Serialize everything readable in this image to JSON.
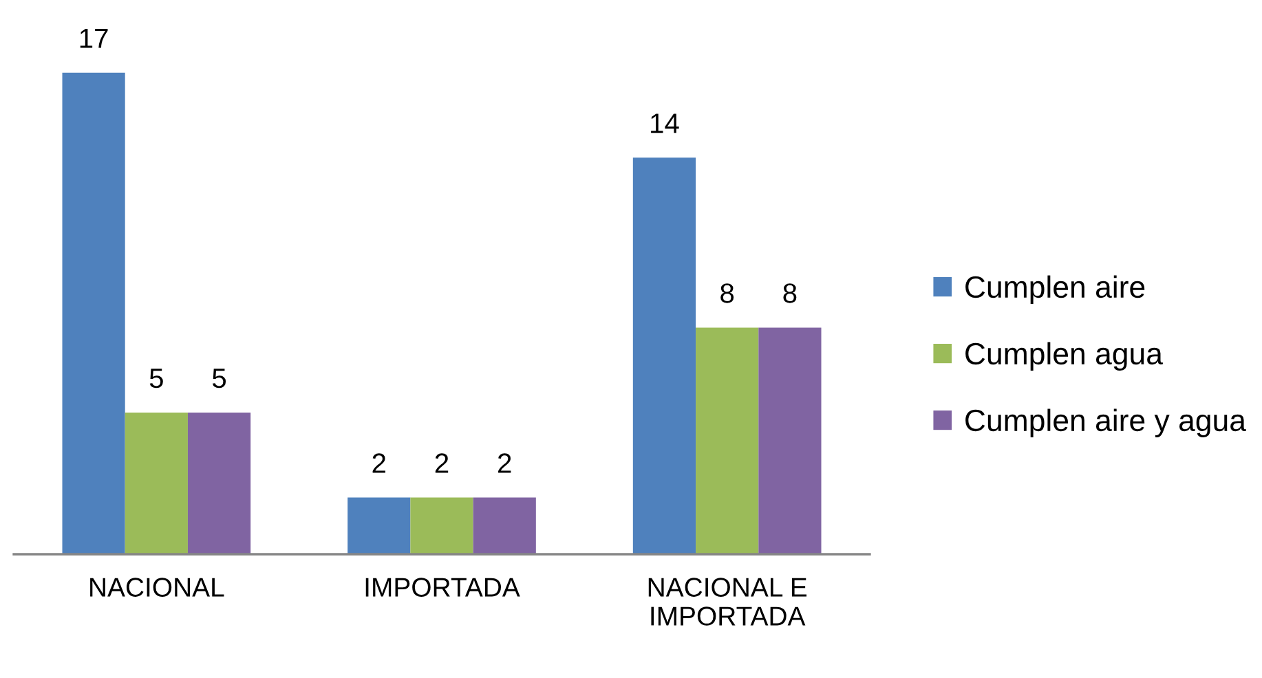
{
  "chart_data": {
    "type": "bar",
    "categories": [
      "NACIONAL",
      "IMPORTADA",
      "NACIONAL E IMPORTADA"
    ],
    "series": [
      {
        "name": "Cumplen aire",
        "color": "#4f81bd",
        "values": [
          17,
          2,
          14
        ]
      },
      {
        "name": "Cumplen agua",
        "color": "#9bbb59",
        "values": [
          5,
          2,
          8
        ]
      },
      {
        "name": "Cumplen aire y agua",
        "color": "#8064a2",
        "values": [
          5,
          2,
          8
        ]
      }
    ],
    "data_labels": true,
    "legend": "right",
    "tick_labels": "x"
  }
}
